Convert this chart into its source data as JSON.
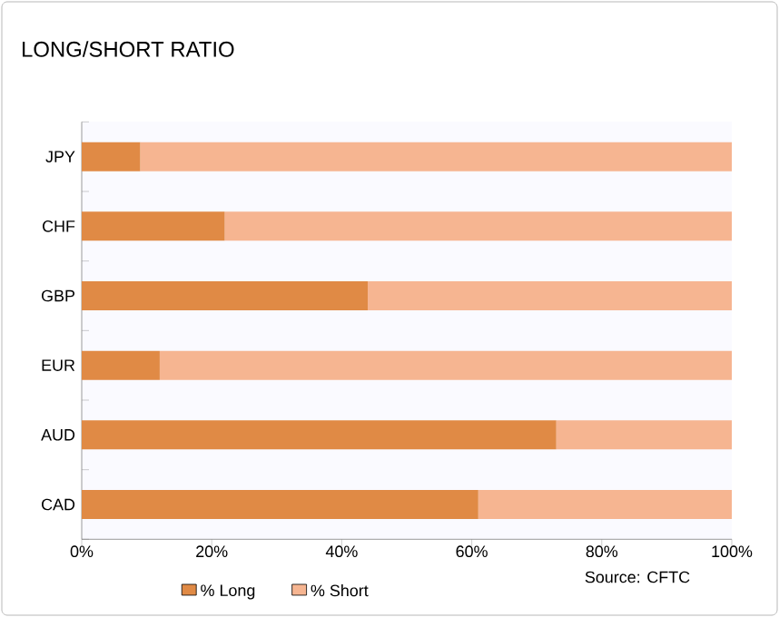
{
  "chart_data": {
    "type": "bar",
    "title": "LONG/SHORT RATIO",
    "orientation": "horizontal",
    "stacked": true,
    "categories": [
      "JPY",
      "CHF",
      "GBP",
      "EUR",
      "AUD",
      "CAD"
    ],
    "series": [
      {
        "name": "% Long",
        "color": "#e08a45",
        "values": [
          9,
          22,
          44,
          12,
          73,
          61
        ]
      },
      {
        "name": "% Short",
        "color": "#f6b591",
        "values": [
          91,
          78,
          56,
          88,
          27,
          39
        ]
      }
    ],
    "xlim": [
      0,
      100
    ],
    "xticks": [
      {
        "value": 0,
        "label": "0%"
      },
      {
        "value": 20,
        "label": "20%"
      },
      {
        "value": 40,
        "label": "40%"
      },
      {
        "value": 60,
        "label": "60%"
      },
      {
        "value": 80,
        "label": "80%"
      },
      {
        "value": 100,
        "label": "100%"
      }
    ],
    "legend": "bottom",
    "annotations": [
      "Source: CFTC"
    ]
  }
}
